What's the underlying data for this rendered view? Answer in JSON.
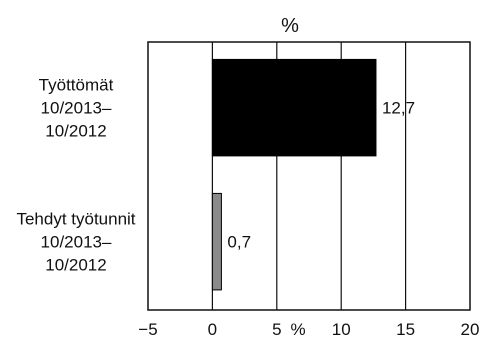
{
  "chart_data": {
    "type": "bar",
    "orientation": "horizontal",
    "title": "%",
    "xlabel": "%",
    "ylabel": "",
    "xlim": [
      -5,
      20
    ],
    "xticks": [
      -5,
      0,
      5,
      10,
      15,
      20
    ],
    "xtick_labels": [
      "−5",
      "0",
      "5",
      "10",
      "15",
      "20"
    ],
    "grid": "vertical",
    "legend": "none",
    "categories": [
      [
        "Työttömät",
        "10/2013–",
        "10/2012"
      ],
      [
        "Tehdyt työtunnit",
        "10/2013–",
        "10/2012"
      ]
    ],
    "values": [
      12.7,
      0.7
    ],
    "data_labels": [
      "12,7",
      "0,7"
    ],
    "colors": [
      "#000000",
      "#8a8a8a"
    ]
  }
}
